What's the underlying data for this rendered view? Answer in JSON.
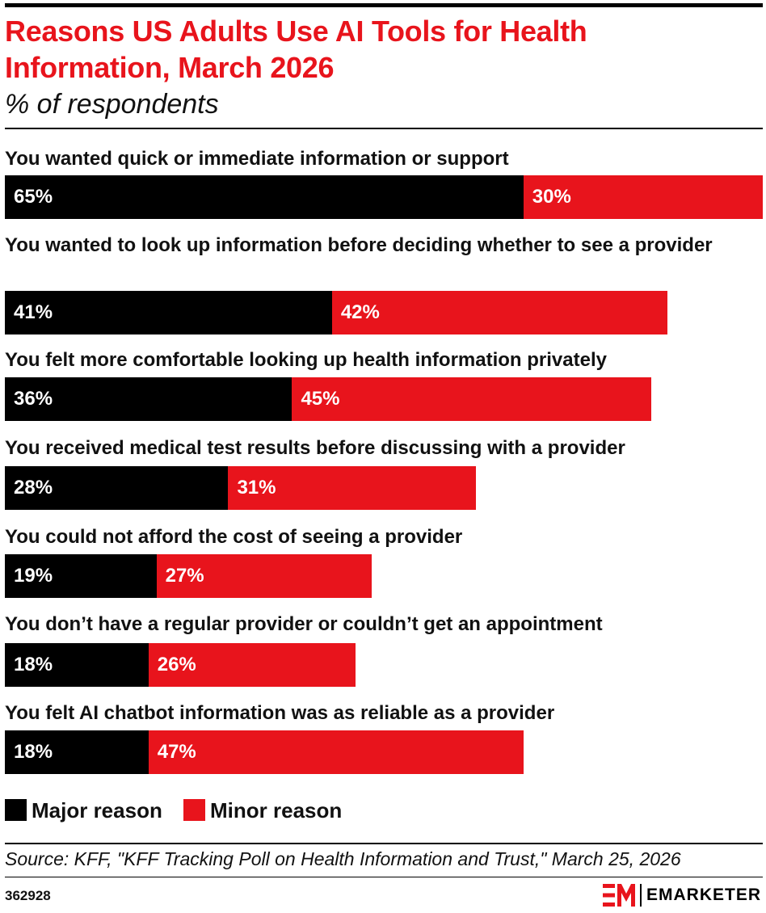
{
  "chart_data": {
    "type": "bar",
    "orientation": "horizontal",
    "stacked": true,
    "title": "Reasons US Adults Use AI Tools for Health Information, March 2026",
    "subtitle": "% of respondents",
    "categories": [
      "You wanted quick or immediate information or support",
      "You wanted to look up information before deciding whether to see a provider",
      "You felt more comfortable looking up health information privately",
      "You received medical test results before discussing with a provider",
      "You could not afford the cost of seeing a provider",
      "You don’t have a regular provider or couldn’t get an appointment",
      "You felt AI chatbot information was as reliable as a provider"
    ],
    "series": [
      {
        "name": "Major reason",
        "values": [
          65,
          41,
          36,
          28,
          19,
          18,
          18
        ],
        "labels": [
          "65%",
          "41%",
          "36%",
          "28%",
          "19%",
          "18%",
          "18%"
        ],
        "color": "#000000"
      },
      {
        "name": "Minor reason",
        "values": [
          30,
          42,
          45,
          31,
          27,
          26,
          47
        ],
        "labels": [
          "30%",
          "42%",
          "45%",
          "31%",
          "27%",
          "26%",
          "47%"
        ],
        "color": "#e8141c"
      }
    ],
    "xlim": [
      0,
      95
    ],
    "legend_position": "bottom-left",
    "grid": false
  },
  "source": "Source: KFF, \"KFF Tracking Poll on Health Information and Trust,\" March 25, 2026",
  "chart_id": "362928",
  "brand": {
    "mark": "EM",
    "name": "EMARKETER"
  }
}
